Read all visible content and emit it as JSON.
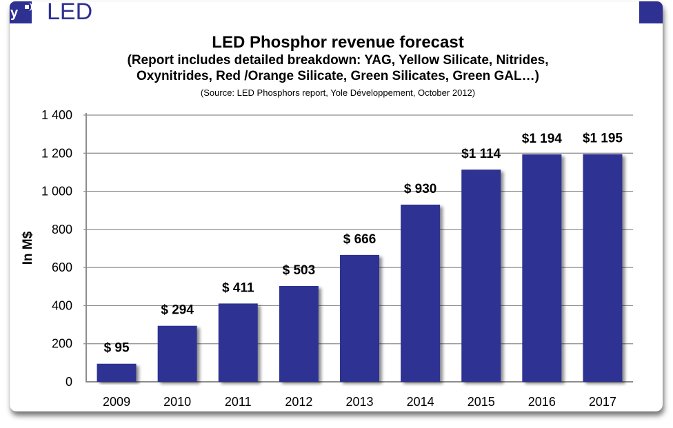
{
  "header": {
    "brand_text": "LED",
    "logo_icon": "yole-logo-icon",
    "brand_color": "#2e3192"
  },
  "chart_data": {
    "type": "bar",
    "title": "LED Phosphor revenue forecast",
    "subtitle_lines": [
      "(Report includes detailed breakdown: YAG, Yellow Silicate, Nitrides,",
      "Oxynitrides, Red /Orange Silicate, Green Silicates, Green GAL…)"
    ],
    "source": "(Source: LED Phosphors report, Yole Développement, October 2012)",
    "xlabel": "",
    "ylabel": "In M$",
    "ylim": [
      0,
      1400
    ],
    "yticks": [
      0,
      200,
      400,
      600,
      800,
      1000,
      1200,
      1400
    ],
    "ytick_labels": [
      "0",
      "200",
      "400",
      "600",
      "800",
      "1 000",
      "1 200",
      "1 400"
    ],
    "grid": true,
    "legend": "none",
    "bar_color": "#2e3192",
    "categories": [
      "2009",
      "2010",
      "2011",
      "2012",
      "2013",
      "2014",
      "2015",
      "2016",
      "2017"
    ],
    "values": [
      95,
      294,
      411,
      503,
      666,
      930,
      1114,
      1194,
      1195
    ],
    "data_labels": [
      "$ 95",
      "$ 294",
      "$ 411",
      "$ 503",
      "$ 666",
      "$ 930",
      "$1 114",
      "$1 194",
      "$1 195"
    ]
  }
}
